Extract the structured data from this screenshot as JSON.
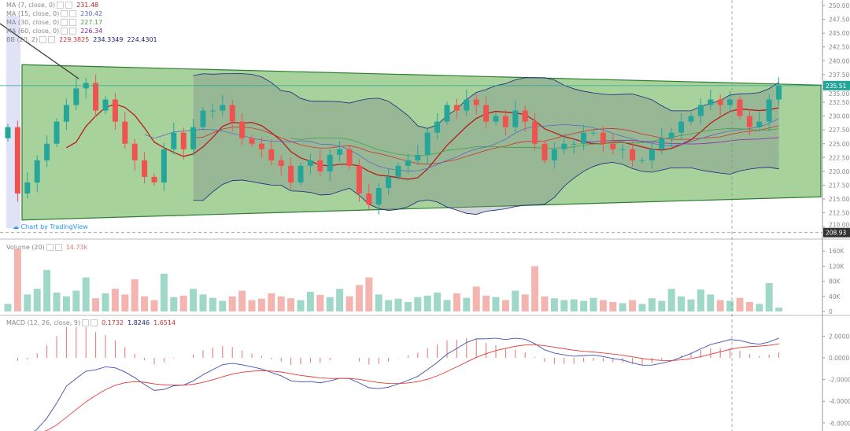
{
  "legend": {
    "ma7": {
      "label": "MA (7, close, 0)",
      "value": "231.48",
      "color": "#b71c1c"
    },
    "ma15": {
      "label": "MA (15, close, 0)",
      "value": "230.42",
      "color": "#5c6bc0"
    },
    "ma30": {
      "label": "MA (30, close, 0)",
      "value": "227.17",
      "color": "#43a047"
    },
    "ma60": {
      "label": "MA (60, close, 0)",
      "value": "226.34",
      "color": "#8e24aa"
    },
    "bb": {
      "label": "BB (20, 2)",
      "basis": "229.3825",
      "upper": "234.3349",
      "lower": "224.4301"
    },
    "volume": {
      "label": "Volume (20)",
      "value": "14.73k"
    },
    "macd": {
      "label": "MACD (12, 26, close, 9)",
      "hist": "0.1732",
      "macd": "1.8246",
      "signal": "1.6514"
    }
  },
  "branding": "Chart by TradingView",
  "chart_data": [
    {
      "type": "candlestick",
      "pane": "price",
      "y_ticks": [
        "250.00",
        "247.50",
        "245.00",
        "242.50",
        "240.00",
        "237.50",
        "235.00",
        "232.50",
        "230.00",
        "227.50",
        "225.00",
        "222.50",
        "220.00",
        "217.50",
        "215.00",
        "212.50",
        "210.00"
      ],
      "ylim": [
        208,
        251
      ],
      "last_price": "235.51",
      "crosshair_price": "208.93",
      "open_first": 226,
      "close": [
        228,
        216,
        218,
        222,
        225,
        229,
        232,
        235,
        236,
        231,
        233,
        229,
        225,
        222,
        219,
        218,
        224,
        227,
        224,
        228,
        231,
        231,
        232,
        229,
        226,
        225,
        224,
        222,
        221,
        218,
        221,
        222,
        220,
        223,
        224,
        221,
        216,
        214,
        217,
        219,
        221,
        222,
        223,
        227,
        229,
        232,
        231,
        233,
        232,
        229,
        230,
        228,
        231,
        229,
        225,
        222,
        224,
        225,
        225,
        227,
        227,
        225,
        224,
        224,
        222,
        222,
        224,
        226,
        227,
        229,
        230,
        232,
        233,
        232,
        233,
        230,
        228,
        229,
        233,
        235.51
      ],
      "channel": {
        "upper": [
          239.3,
          235.6
        ],
        "lower": [
          211.2,
          215.4
        ]
      },
      "colors": {
        "up": "#26a69a",
        "down": "#ef5350",
        "channel_fill": "#8bc37a",
        "channel_line": "#2e7d32"
      }
    },
    {
      "type": "bar",
      "pane": "volume",
      "y_ticks": [
        "160K",
        "120K",
        "80K",
        "40K",
        "0"
      ],
      "ylim": [
        0,
        170
      ],
      "values": [
        20,
        165,
        45,
        60,
        110,
        50,
        40,
        55,
        90,
        35,
        48,
        60,
        45,
        85,
        40,
        30,
        100,
        38,
        42,
        60,
        45,
        36,
        28,
        40,
        55,
        30,
        34,
        48,
        40,
        35,
        30,
        52,
        44,
        38,
        60,
        40,
        70,
        90,
        45,
        30,
        34,
        25,
        38,
        42,
        50,
        30,
        48,
        36,
        66,
        42,
        38,
        30,
        55,
        45,
        120,
        40,
        35,
        30,
        32,
        28,
        36,
        30,
        25,
        22,
        30,
        20,
        35,
        28,
        60,
        40,
        32,
        58,
        45,
        30,
        28,
        36,
        25,
        20,
        75,
        10
      ]
    },
    {
      "type": "line",
      "pane": "macd",
      "y_ticks": [
        "2.0000",
        "0.0000",
        "-2.0000",
        "-4.0000",
        "-6.0000"
      ],
      "ylim": [
        -6.6,
        3.2
      ]
    }
  ]
}
